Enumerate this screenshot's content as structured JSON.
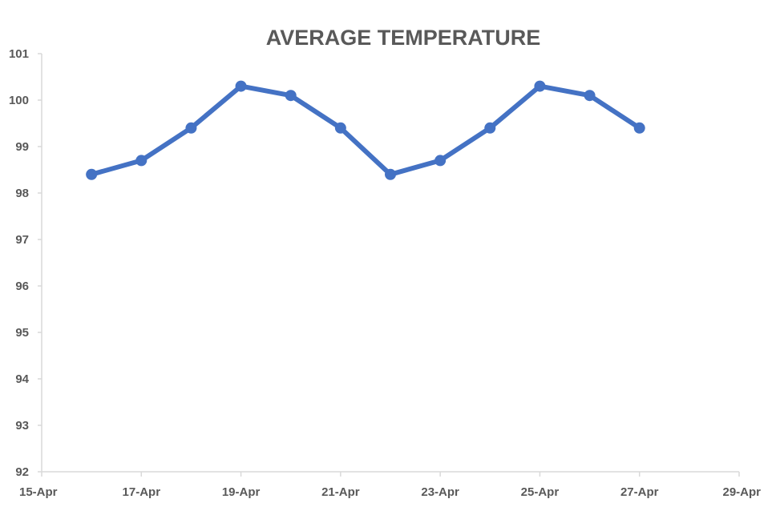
{
  "chart_data": {
    "type": "line",
    "title": "AVERAGE TEMPERATURE",
    "xlabel": "",
    "ylabel": "",
    "x_axis": {
      "type": "date",
      "range": [
        "2024-04-15",
        "2024-04-29"
      ],
      "tick_labels": [
        "15-Apr",
        "17-Apr",
        "19-Apr",
        "21-Apr",
        "23-Apr",
        "25-Apr",
        "27-Apr",
        "29-Apr"
      ],
      "tick_dates": [
        "2024-04-15",
        "2024-04-17",
        "2024-04-19",
        "2024-04-21",
        "2024-04-23",
        "2024-04-25",
        "2024-04-27",
        "2024-04-29"
      ]
    },
    "y_axis": {
      "range": [
        92,
        101
      ],
      "tick_labels": [
        "92",
        "93",
        "94",
        "95",
        "96",
        "97",
        "98",
        "99",
        "100",
        "101"
      ],
      "tick_values": [
        92,
        93,
        94,
        95,
        96,
        97,
        98,
        99,
        100,
        101
      ]
    },
    "grid": false,
    "legend": "none",
    "series": [
      {
        "color": "#4472c4",
        "points": [
          {
            "x": "2024-04-16",
            "y": 98.4
          },
          {
            "x": "2024-04-17",
            "y": 98.7
          },
          {
            "x": "2024-04-18",
            "y": 99.4
          },
          {
            "x": "2024-04-19",
            "y": 100.3
          },
          {
            "x": "2024-04-20",
            "y": 100.1
          },
          {
            "x": "2024-04-21",
            "y": 99.4
          },
          {
            "x": "2024-04-22",
            "y": 98.4
          },
          {
            "x": "2024-04-23",
            "y": 98.7
          },
          {
            "x": "2024-04-24",
            "y": 99.4
          },
          {
            "x": "2024-04-25",
            "y": 100.3
          },
          {
            "x": "2024-04-26",
            "y": 100.1
          },
          {
            "x": "2024-04-27",
            "y": 99.4
          }
        ]
      }
    ]
  }
}
